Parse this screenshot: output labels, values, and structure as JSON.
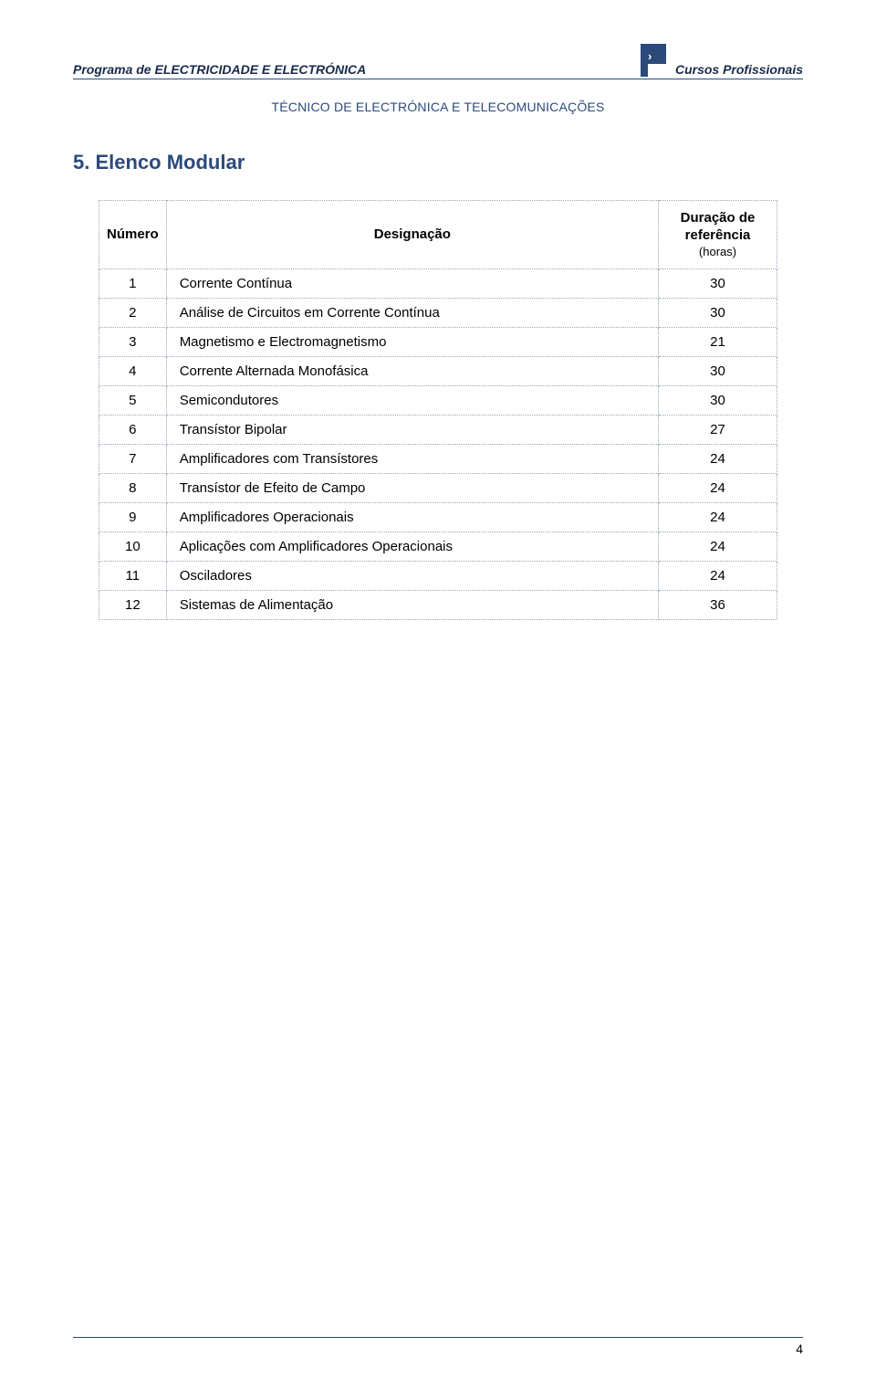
{
  "header": {
    "left": "Programa de ELECTRICIDADE E ELECTRÓNICA",
    "right": "Cursos Profissionais",
    "sub": "TÉCNICO DE ELECTRÓNICA E TELECOMUNICAÇÕES"
  },
  "section_title": "5. Elenco Modular",
  "table": {
    "columns": {
      "num": "Número",
      "des": "Designação",
      "dur_line1": "Duração de",
      "dur_line2": "referência",
      "dur_line3": "(horas)"
    },
    "rows": [
      {
        "n": "1",
        "d": "Corrente Contínua",
        "h": "30"
      },
      {
        "n": "2",
        "d": "Análise de Circuitos em Corrente Contínua",
        "h": "30"
      },
      {
        "n": "3",
        "d": "Magnetismo e Electromagnetismo",
        "h": "21"
      },
      {
        "n": "4",
        "d": "Corrente Alternada Monofásica",
        "h": "30"
      },
      {
        "n": "5",
        "d": "Semicondutores",
        "h": "30"
      },
      {
        "n": "6",
        "d": "Transístor Bipolar",
        "h": "27"
      },
      {
        "n": "7",
        "d": "Amplificadores com Transístores",
        "h": "24"
      },
      {
        "n": "8",
        "d": "Transístor de Efeito de Campo",
        "h": "24"
      },
      {
        "n": "9",
        "d": "Amplificadores Operacionais",
        "h": "24"
      },
      {
        "n": "10",
        "d": "Aplicações com Amplificadores Operacionais",
        "h": "24"
      },
      {
        "n": "11",
        "d": "Osciladores",
        "h": "24"
      },
      {
        "n": "12",
        "d": "Sistemas de Alimentação",
        "h": "36"
      }
    ]
  },
  "page_number": "4",
  "colors": {
    "brand": "#2b4a7a",
    "text_dark": "#1a2a4a",
    "border_dotted": "#9aa5b8",
    "background": "#ffffff"
  }
}
